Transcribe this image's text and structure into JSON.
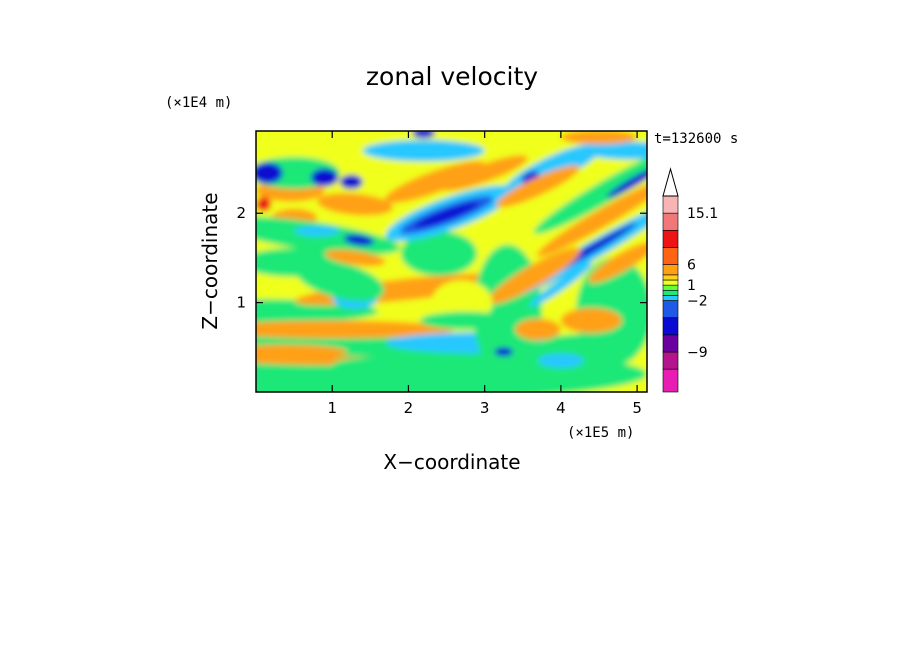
{
  "chart_data": {
    "type": "heatmap",
    "title": "zonal velocity",
    "xlabel": "X−coordinate",
    "ylabel": "Z−coordinate",
    "x_unit": "(×1E5 m)",
    "y_unit": "(×1E4 m)",
    "time_label": "t=132600 s",
    "xlim": [
      0,
      5.13
    ],
    "ylim": [
      0,
      2.92
    ],
    "x_ticks": [
      "1",
      "2",
      "3",
      "4",
      "5"
    ],
    "x_tick_values": [
      1,
      2,
      3,
      4,
      5
    ],
    "y_ticks": [
      "1",
      "2"
    ],
    "y_tick_values": [
      1,
      2
    ],
    "grid": false,
    "colorbar": {
      "levels_bottom_to_top": [
        -15,
        -12,
        -9,
        -6,
        -3,
        -2,
        -1,
        0,
        1,
        2,
        3,
        6,
        9,
        12,
        15.1
      ],
      "colors_bottom_to_top": [
        "#e81eb4",
        "#b4148c",
        "#6a00a0",
        "#0a0ad2",
        "#1e5ae6",
        "#28c8ff",
        "#1ee878",
        "#64ff3c",
        "#f0ff1e",
        "#ffd21e",
        "#ffa014",
        "#ff6414",
        "#ee1414",
        "#f07878",
        "#f8b4b4"
      ],
      "tick_labels": [
        "15.1",
        "6",
        "1",
        "−2",
        "−9"
      ],
      "tick_values": [
        15.1,
        6,
        1,
        -2,
        -9
      ]
    }
  }
}
